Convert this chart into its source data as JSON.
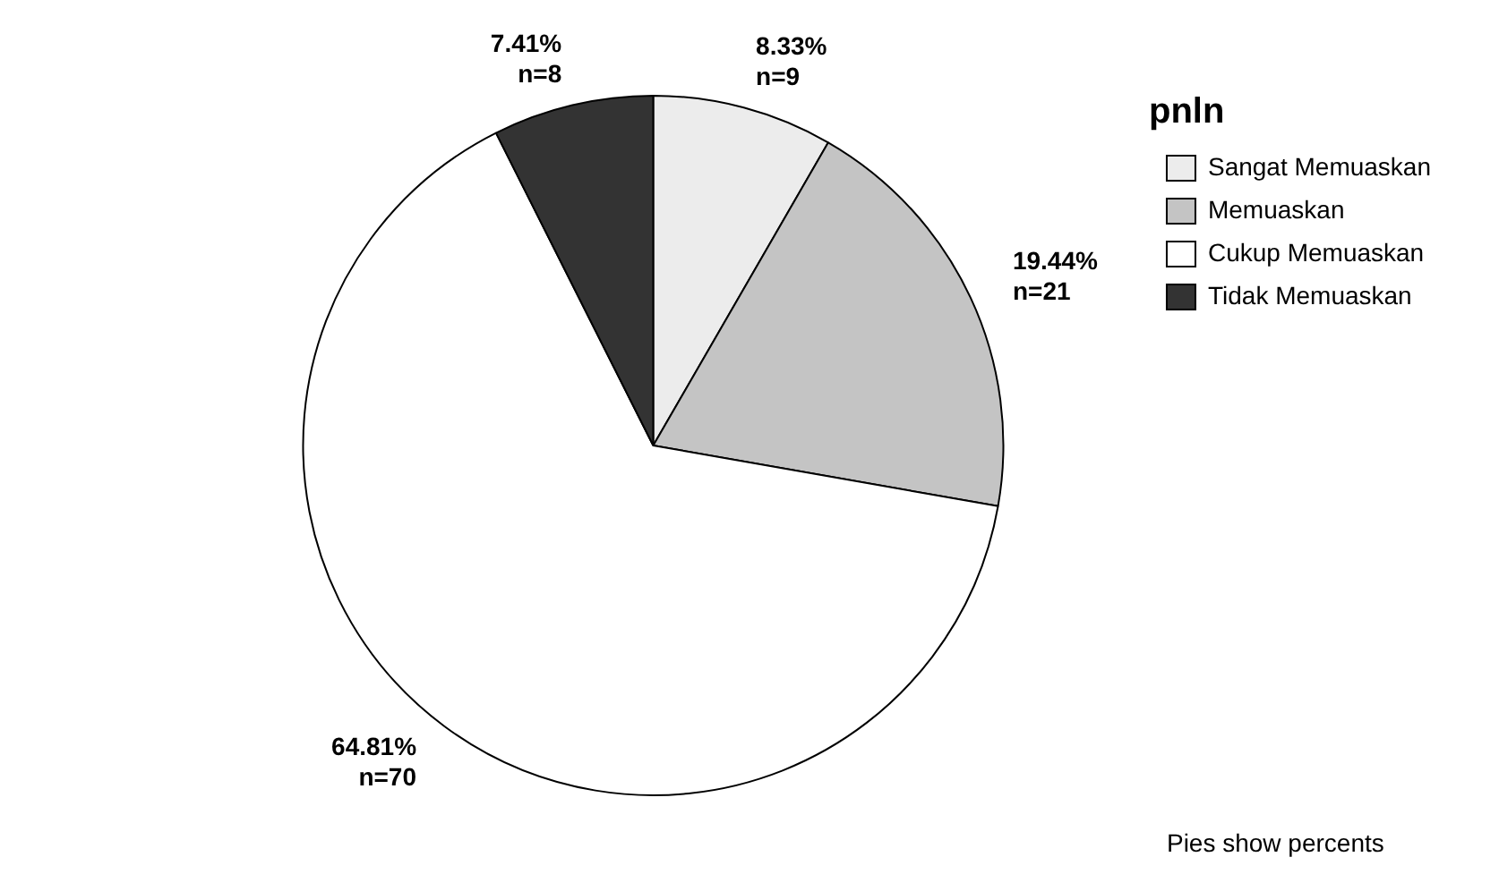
{
  "chart_data": {
    "type": "pie",
    "legend_title": "pnln",
    "legend": "top right",
    "categories": [
      "Sangat Memuaskan",
      "Memuaskan",
      "Cukup Memuaskan",
      "Tidak Memuaskan"
    ],
    "values": [
      8.33,
      19.44,
      64.81,
      7.41
    ],
    "value_labels": [
      "8.33%\nn=9",
      "19.44%\nn=21",
      "64.81%\nn=70",
      "7.41%\nn=8"
    ],
    "colors": [
      "#ececec",
      "#c4c4c4",
      "#ffffff",
      "#333333"
    ],
    "annotations": [
      "Pies show percents"
    ]
  }
}
